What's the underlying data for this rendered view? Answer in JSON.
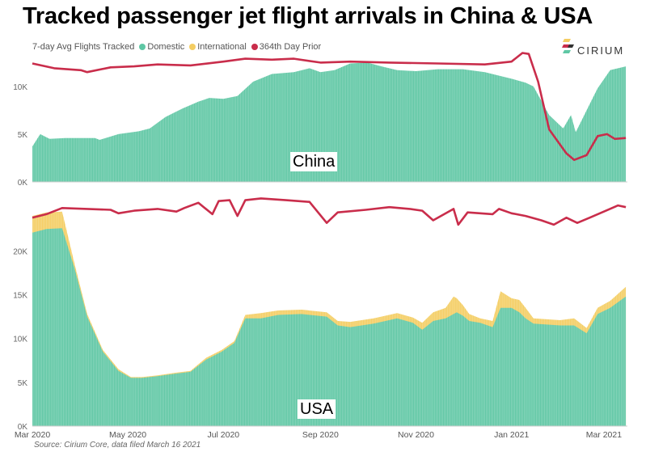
{
  "title": "Tracked passenger jet flight arrivals in China & USA",
  "legend": {
    "title": "7-day Avg Flights Tracked",
    "items": [
      {
        "label": "Domestic",
        "color": "#5fc7a4"
      },
      {
        "label": "International",
        "color": "#f4cd62"
      },
      {
        "label": "364th Day Prior",
        "color": "#c92d4b"
      }
    ]
  },
  "logo_text": "CIRIUM",
  "source": "Source: Cirium Core, data filed March 16 2021",
  "chart_data": [
    {
      "type": "area",
      "panel_label": "China",
      "x_unit": "date",
      "ylim": [
        0,
        13800
      ],
      "y_ticks": [
        "0K",
        "5K",
        "10K"
      ],
      "x_ticks": [],
      "grid": false,
      "series": [
        {
          "name": "Domestic",
          "color": "#5fc7a4",
          "points": [
            [
              "2020-03-01",
              3700
            ],
            [
              "2020-03-06",
              5000
            ],
            [
              "2020-03-12",
              4500
            ],
            [
              "2020-03-22",
              4600
            ],
            [
              "2020-04-10",
              4600
            ],
            [
              "2020-04-13",
              4400
            ],
            [
              "2020-04-25",
              5000
            ],
            [
              "2020-05-08",
              5300
            ],
            [
              "2020-05-15",
              5600
            ],
            [
              "2020-05-25",
              6800
            ],
            [
              "2020-06-05",
              7700
            ],
            [
              "2020-06-15",
              8400
            ],
            [
              "2020-06-22",
              8800
            ],
            [
              "2020-07-01",
              8700
            ],
            [
              "2020-07-10",
              9000
            ],
            [
              "2020-07-20",
              10500
            ],
            [
              "2020-08-01",
              11300
            ],
            [
              "2020-08-15",
              11500
            ],
            [
              "2020-08-25",
              11900
            ],
            [
              "2020-09-01",
              11500
            ],
            [
              "2020-09-10",
              11700
            ],
            [
              "2020-09-20",
              12400
            ],
            [
              "2020-10-01",
              12500
            ],
            [
              "2020-10-10",
              12100
            ],
            [
              "2020-10-20",
              11700
            ],
            [
              "2020-11-01",
              11600
            ],
            [
              "2020-11-15",
              11800
            ],
            [
              "2020-12-01",
              11800
            ],
            [
              "2020-12-15",
              11500
            ],
            [
              "2021-01-01",
              10800
            ],
            [
              "2021-01-10",
              10400
            ],
            [
              "2021-01-15",
              10000
            ],
            [
              "2021-01-25",
              7000
            ],
            [
              "2021-02-03",
              5600
            ],
            [
              "2021-02-08",
              7000
            ],
            [
              "2021-02-11",
              5200
            ],
            [
              "2021-02-18",
              7500
            ],
            [
              "2021-02-25",
              9800
            ],
            [
              "2021-03-05",
              11700
            ],
            [
              "2021-03-15",
              12100
            ]
          ]
        },
        {
          "name": "364th Day Prior",
          "color": "#c92d4b",
          "points": [
            [
              "2020-03-01",
              12400
            ],
            [
              "2020-03-15",
              11900
            ],
            [
              "2020-04-01",
              11700
            ],
            [
              "2020-04-05",
              11500
            ],
            [
              "2020-04-20",
              12000
            ],
            [
              "2020-05-05",
              12100
            ],
            [
              "2020-05-20",
              12300
            ],
            [
              "2020-06-10",
              12200
            ],
            [
              "2020-07-01",
              12600
            ],
            [
              "2020-07-15",
              12900
            ],
            [
              "2020-08-01",
              12800
            ],
            [
              "2020-08-15",
              12900
            ],
            [
              "2020-09-01",
              12500
            ],
            [
              "2020-09-20",
              12600
            ],
            [
              "2020-10-15",
              12500
            ],
            [
              "2020-11-15",
              12400
            ],
            [
              "2020-12-15",
              12300
            ],
            [
              "2021-01-01",
              12600
            ],
            [
              "2021-01-08",
              13500
            ],
            [
              "2021-01-12",
              13400
            ],
            [
              "2021-01-18",
              10500
            ],
            [
              "2021-01-25",
              5500
            ],
            [
              "2021-02-05",
              3000
            ],
            [
              "2021-02-10",
              2300
            ],
            [
              "2021-02-18",
              2800
            ],
            [
              "2021-02-25",
              4800
            ],
            [
              "2021-03-03",
              5000
            ],
            [
              "2021-03-08",
              4500
            ],
            [
              "2021-03-15",
              4600
            ]
          ]
        }
      ]
    },
    {
      "type": "area",
      "panel_label": "USA",
      "x_unit": "date",
      "ylim": [
        0,
        26500
      ],
      "y_ticks": [
        "0K",
        "5K",
        "10K",
        "15K",
        "20K"
      ],
      "x_ticks": [
        "Mar 2020",
        "May 2020",
        "Jul 2020",
        "Sep 2020",
        "Nov 2020",
        "Jan 2021",
        "Mar 2021"
      ],
      "x_tick_dates": [
        "2020-03-01",
        "2020-05-01",
        "2020-07-01",
        "2020-09-01",
        "2020-11-01",
        "2021-01-01",
        "2021-03-01"
      ],
      "grid": false,
      "series": [
        {
          "name": "Domestic",
          "color": "#5fc7a4",
          "points": [
            [
              "2020-03-01",
              22100
            ],
            [
              "2020-03-10",
              22500
            ],
            [
              "2020-03-20",
              22600
            ],
            [
              "2020-03-28",
              18000
            ],
            [
              "2020-04-05",
              12500
            ],
            [
              "2020-04-15",
              8500
            ],
            [
              "2020-04-25",
              6300
            ],
            [
              "2020-05-03",
              5500
            ],
            [
              "2020-05-10",
              5500
            ],
            [
              "2020-05-20",
              5700
            ],
            [
              "2020-06-01",
              6000
            ],
            [
              "2020-06-10",
              6200
            ],
            [
              "2020-06-20",
              7600
            ],
            [
              "2020-06-30",
              8500
            ],
            [
              "2020-07-08",
              9500
            ],
            [
              "2020-07-15",
              12300
            ],
            [
              "2020-07-25",
              12300
            ],
            [
              "2020-08-05",
              12700
            ],
            [
              "2020-08-20",
              12800
            ],
            [
              "2020-09-05",
              12500
            ],
            [
              "2020-09-12",
              11500
            ],
            [
              "2020-09-20",
              11300
            ],
            [
              "2020-10-05",
              11700
            ],
            [
              "2020-10-20",
              12300
            ],
            [
              "2020-10-30",
              11800
            ],
            [
              "2020-11-05",
              11000
            ],
            [
              "2020-11-12",
              12000
            ],
            [
              "2020-11-20",
              12300
            ],
            [
              "2020-11-25",
              12800
            ],
            [
              "2020-11-27",
              13000
            ],
            [
              "2020-12-01",
              12600
            ],
            [
              "2020-12-05",
              12000
            ],
            [
              "2020-12-12",
              11800
            ],
            [
              "2020-12-20",
              11300
            ],
            [
              "2020-12-25",
              13500
            ],
            [
              "2021-01-01",
              13500
            ],
            [
              "2021-01-06",
              13000
            ],
            [
              "2021-01-10",
              12300
            ],
            [
              "2021-01-15",
              11700
            ],
            [
              "2021-02-01",
              11500
            ],
            [
              "2021-02-10",
              11500
            ],
            [
              "2021-02-18",
              10600
            ],
            [
              "2021-02-25",
              12800
            ],
            [
              "2021-03-05",
              13500
            ],
            [
              "2021-03-15",
              14800
            ]
          ]
        },
        {
          "name": "International",
          "color": "#f4cd62",
          "points": [
            [
              "2020-03-01",
              24000
            ],
            [
              "2020-03-10",
              24400
            ],
            [
              "2020-03-20",
              24500
            ],
            [
              "2020-03-28",
              18500
            ],
            [
              "2020-04-05",
              12800
            ],
            [
              "2020-04-15",
              8700
            ],
            [
              "2020-04-25",
              6500
            ],
            [
              "2020-05-03",
              5600
            ],
            [
              "2020-05-10",
              5600
            ],
            [
              "2020-05-20",
              5800
            ],
            [
              "2020-06-01",
              6100
            ],
            [
              "2020-06-10",
              6300
            ],
            [
              "2020-06-20",
              7800
            ],
            [
              "2020-06-30",
              8700
            ],
            [
              "2020-07-08",
              9700
            ],
            [
              "2020-07-15",
              12700
            ],
            [
              "2020-07-25",
              12900
            ],
            [
              "2020-08-05",
              13200
            ],
            [
              "2020-08-20",
              13300
            ],
            [
              "2020-09-05",
              13000
            ],
            [
              "2020-09-12",
              12000
            ],
            [
              "2020-09-20",
              11900
            ],
            [
              "2020-10-05",
              12300
            ],
            [
              "2020-10-20",
              12900
            ],
            [
              "2020-10-30",
              12400
            ],
            [
              "2020-11-05",
              11800
            ],
            [
              "2020-11-12",
              13000
            ],
            [
              "2020-11-20",
              13500
            ],
            [
              "2020-11-25",
              14800
            ],
            [
              "2020-11-27",
              14600
            ],
            [
              "2020-12-01",
              13800
            ],
            [
              "2020-12-05",
              12800
            ],
            [
              "2020-12-12",
              12300
            ],
            [
              "2020-12-20",
              12000
            ],
            [
              "2020-12-25",
              15400
            ],
            [
              "2021-01-01",
              14600
            ],
            [
              "2021-01-06",
              14400
            ],
            [
              "2021-01-10",
              13500
            ],
            [
              "2021-01-15",
              12300
            ],
            [
              "2021-02-01",
              12100
            ],
            [
              "2021-02-10",
              12300
            ],
            [
              "2021-02-18",
              11200
            ],
            [
              "2021-02-25",
              13500
            ],
            [
              "2021-03-05",
              14300
            ],
            [
              "2021-03-15",
              15900
            ]
          ]
        },
        {
          "name": "364th Day Prior",
          "color": "#c92d4b",
          "points": [
            [
              "2020-03-01",
              23800
            ],
            [
              "2020-03-10",
              24200
            ],
            [
              "2020-03-20",
              24900
            ],
            [
              "2020-04-05",
              24800
            ],
            [
              "2020-04-20",
              24700
            ],
            [
              "2020-04-25",
              24300
            ],
            [
              "2020-05-05",
              24600
            ],
            [
              "2020-05-20",
              24800
            ],
            [
              "2020-06-01",
              24500
            ],
            [
              "2020-06-06",
              24900
            ],
            [
              "2020-06-15",
              25500
            ],
            [
              "2020-06-24",
              24200
            ],
            [
              "2020-06-28",
              25700
            ],
            [
              "2020-07-05",
              25800
            ],
            [
              "2020-07-10",
              24000
            ],
            [
              "2020-07-15",
              25800
            ],
            [
              "2020-07-25",
              26000
            ],
            [
              "2020-08-10",
              25800
            ],
            [
              "2020-08-25",
              25600
            ],
            [
              "2020-09-05",
              23200
            ],
            [
              "2020-09-12",
              24400
            ],
            [
              "2020-09-30",
              24700
            ],
            [
              "2020-10-15",
              25000
            ],
            [
              "2020-10-28",
              24800
            ],
            [
              "2020-11-05",
              24600
            ],
            [
              "2020-11-12",
              23500
            ],
            [
              "2020-11-25",
              24800
            ],
            [
              "2020-11-28",
              23000
            ],
            [
              "2020-12-04",
              24400
            ],
            [
              "2020-12-12",
              24300
            ],
            [
              "2020-12-20",
              24200
            ],
            [
              "2020-12-24",
              24800
            ],
            [
              "2021-01-01",
              24300
            ],
            [
              "2021-01-10",
              24000
            ],
            [
              "2021-01-20",
              23500
            ],
            [
              "2021-01-28",
              23000
            ],
            [
              "2021-02-05",
              23800
            ],
            [
              "2021-02-12",
              23200
            ],
            [
              "2021-02-20",
              23800
            ],
            [
              "2021-03-01",
              24500
            ],
            [
              "2021-03-10",
              25200
            ],
            [
              "2021-03-15",
              25000
            ]
          ]
        }
      ]
    }
  ]
}
